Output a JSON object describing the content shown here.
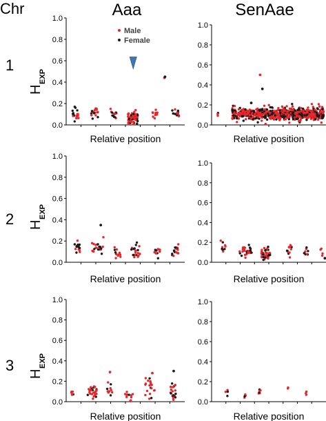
{
  "header": {
    "chr_label": "Chr",
    "columns": [
      "Aaa",
      "SenAae"
    ]
  },
  "rows": [
    {
      "label": "1"
    },
    {
      "label": "2"
    },
    {
      "label": "3"
    }
  ],
  "axis": {
    "ylabel_main": "H",
    "ylabel_sub": "EXP",
    "xlabel": "Relative position",
    "yticks": [
      "0.0",
      "0.2",
      "0.4",
      "0.6",
      "0.8",
      "1.0"
    ]
  },
  "legend": {
    "male": "Male",
    "female": "Female"
  },
  "colors": {
    "male": "#e8262a",
    "female": "#1a1a1a",
    "marker": "#3f78b5"
  },
  "chart_data": [
    {
      "type": "scatter",
      "panel": "Chr 1 Aaa",
      "xlabel": "Relative position",
      "ylim": [
        0,
        1.0
      ],
      "clusters": [
        {
          "x": 0.06,
          "w": 0.06,
          "n": 18,
          "y": 0.1,
          "s": 0.05
        },
        {
          "x": 0.22,
          "w": 0.06,
          "n": 18,
          "y": 0.12,
          "s": 0.05
        },
        {
          "x": 0.38,
          "w": 0.06,
          "n": 14,
          "y": 0.1,
          "s": 0.04
        },
        {
          "x": 0.55,
          "w": 0.09,
          "n": 60,
          "y": 0.06,
          "s": 0.05
        },
        {
          "x": 0.74,
          "w": 0.05,
          "n": 10,
          "y": 0.1,
          "s": 0.04
        },
        {
          "x": 0.92,
          "w": 0.06,
          "n": 14,
          "y": 0.11,
          "s": 0.04
        }
      ],
      "outliers": [
        {
          "x": 0.825,
          "y": 0.44,
          "sex": "Male"
        },
        {
          "x": 0.83,
          "y": 0.45,
          "sex": "Female"
        }
      ],
      "annotation": {
        "type": "triangle",
        "x": 0.555,
        "y": 0.59
      }
    },
    {
      "type": "scatter",
      "panel": "Chr 1 SenAae",
      "xlabel": "Relative position",
      "ylim": [
        0,
        1.0
      ],
      "clusters": [
        {
          "x": 0.03,
          "w": 0.01,
          "n": 3,
          "y": 0.1,
          "s": 0.02
        },
        {
          "x": 0.57,
          "w": 0.82,
          "n": 650,
          "y": 0.11,
          "s": 0.05
        }
      ],
      "outliers": [
        {
          "x": 0.41,
          "y": 0.5,
          "sex": "Male"
        },
        {
          "x": 0.43,
          "y": 0.36,
          "sex": "Female"
        },
        {
          "x": 0.33,
          "y": 0.22,
          "sex": "Female"
        }
      ]
    },
    {
      "type": "scatter",
      "panel": "Chr 2 Aaa",
      "xlabel": "Relative position",
      "ylim": [
        0,
        1.0
      ],
      "clusters": [
        {
          "x": 0.07,
          "w": 0.05,
          "n": 14,
          "y": 0.14,
          "s": 0.05
        },
        {
          "x": 0.25,
          "w": 0.1,
          "n": 22,
          "y": 0.13,
          "s": 0.05
        },
        {
          "x": 0.42,
          "w": 0.06,
          "n": 12,
          "y": 0.08,
          "s": 0.05
        },
        {
          "x": 0.58,
          "w": 0.08,
          "n": 20,
          "y": 0.1,
          "s": 0.05
        },
        {
          "x": 0.77,
          "w": 0.06,
          "n": 12,
          "y": 0.11,
          "s": 0.05
        },
        {
          "x": 0.92,
          "w": 0.06,
          "n": 16,
          "y": 0.11,
          "s": 0.05
        }
      ],
      "outliers": [
        {
          "x": 0.275,
          "y": 0.35,
          "sex": "Female"
        }
      ]
    },
    {
      "type": "scatter",
      "panel": "Chr 2 SenAae",
      "xlabel": "Relative position",
      "ylim": [
        0,
        1.0
      ],
      "clusters": [
        {
          "x": 0.08,
          "w": 0.05,
          "n": 10,
          "y": 0.14,
          "s": 0.05
        },
        {
          "x": 0.28,
          "w": 0.12,
          "n": 28,
          "y": 0.11,
          "s": 0.05
        },
        {
          "x": 0.46,
          "w": 0.08,
          "n": 34,
          "y": 0.09,
          "s": 0.05
        },
        {
          "x": 0.67,
          "w": 0.05,
          "n": 12,
          "y": 0.12,
          "s": 0.05
        },
        {
          "x": 0.82,
          "w": 0.04,
          "n": 8,
          "y": 0.1,
          "s": 0.04
        },
        {
          "x": 0.96,
          "w": 0.02,
          "n": 4,
          "y": 0.12,
          "s": 0.04
        }
      ],
      "outliers": [
        {
          "x": 0.99,
          "y": 0.04,
          "sex": "Female"
        }
      ]
    },
    {
      "type": "scatter",
      "panel": "Chr 3 Aaa",
      "xlabel": "Relative position",
      "ylim": [
        0,
        1.0
      ],
      "clusters": [
        {
          "x": 0.03,
          "w": 0.02,
          "n": 6,
          "y": 0.1,
          "s": 0.04
        },
        {
          "x": 0.2,
          "w": 0.08,
          "n": 26,
          "y": 0.11,
          "s": 0.06
        },
        {
          "x": 0.35,
          "w": 0.05,
          "n": 10,
          "y": 0.12,
          "s": 0.08
        },
        {
          "x": 0.52,
          "w": 0.07,
          "n": 12,
          "y": 0.05,
          "s": 0.04
        },
        {
          "x": 0.7,
          "w": 0.08,
          "n": 20,
          "y": 0.15,
          "s": 0.07
        },
        {
          "x": 0.9,
          "w": 0.05,
          "n": 20,
          "y": 0.1,
          "s": 0.07
        }
      ],
      "outliers": [
        {
          "x": 0.355,
          "y": 0.29,
          "sex": "Male"
        },
        {
          "x": 0.72,
          "y": 0.28,
          "sex": "Male"
        },
        {
          "x": 0.905,
          "y": 0.3,
          "sex": "Female"
        }
      ]
    },
    {
      "type": "scatter",
      "panel": "Chr 3 SenAae",
      "xlabel": "Relative position",
      "ylim": [
        0,
        1.0
      ],
      "clusters": [
        {
          "x": 0.11,
          "w": 0.02,
          "n": 4,
          "y": 0.1,
          "s": 0.03
        },
        {
          "x": 0.27,
          "w": 0.02,
          "n": 4,
          "y": 0.07,
          "s": 0.02
        },
        {
          "x": 0.41,
          "w": 0.03,
          "n": 6,
          "y": 0.11,
          "s": 0.03
        },
        {
          "x": 0.66,
          "w": 0.01,
          "n": 2,
          "y": 0.14,
          "s": 0.01
        },
        {
          "x": 0.82,
          "w": 0.01,
          "n": 3,
          "y": 0.1,
          "s": 0.04
        }
      ],
      "outliers": []
    }
  ]
}
